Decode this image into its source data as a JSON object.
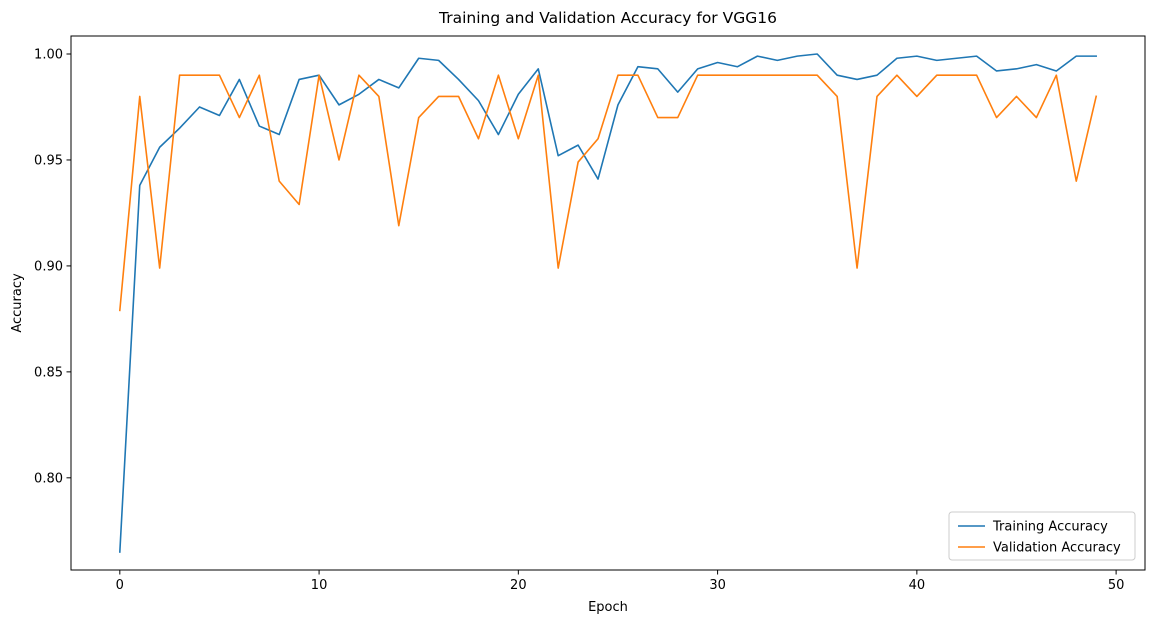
{
  "chart_data": {
    "type": "line",
    "title": "Training and Validation Accuracy for VGG16",
    "xlabel": "Epoch",
    "ylabel": "Accuracy",
    "xlim": [
      -2.45,
      51.45
    ],
    "ylim": [
      0.7565,
      1.0085
    ],
    "xticks": [
      0,
      10,
      20,
      30,
      40,
      50
    ],
    "yticks": [
      0.8,
      0.85,
      0.9,
      0.95,
      1.0
    ],
    "xtick_labels": [
      "0",
      "10",
      "20",
      "30",
      "40",
      "50"
    ],
    "ytick_labels": [
      "0.80",
      "0.85",
      "0.90",
      "0.95",
      "1.00"
    ],
    "grid": false,
    "legend_position": "lower-right",
    "x": [
      0,
      1,
      2,
      3,
      4,
      5,
      6,
      7,
      8,
      9,
      10,
      11,
      12,
      13,
      14,
      15,
      16,
      17,
      18,
      19,
      20,
      21,
      22,
      23,
      24,
      25,
      26,
      27,
      28,
      29,
      30,
      31,
      32,
      33,
      34,
      35,
      36,
      37,
      38,
      39,
      40,
      41,
      42,
      43,
      44,
      45,
      46,
      47,
      48,
      49
    ],
    "series": [
      {
        "name": "Training Accuracy",
        "color": "#1f77b4",
        "values": [
          0.765,
          0.938,
          0.956,
          0.965,
          0.975,
          0.971,
          0.988,
          0.966,
          0.962,
          0.988,
          0.99,
          0.976,
          0.981,
          0.988,
          0.984,
          0.998,
          0.997,
          0.988,
          0.978,
          0.962,
          0.981,
          0.993,
          0.952,
          0.957,
          0.941,
          0.976,
          0.994,
          0.993,
          0.982,
          0.993,
          0.996,
          0.994,
          0.999,
          0.997,
          0.999,
          1.0,
          0.99,
          0.988,
          0.99,
          0.998,
          0.999,
          0.997,
          0.998,
          0.999,
          0.992,
          0.993,
          0.995,
          0.992,
          0.999,
          0.999
        ]
      },
      {
        "name": "Validation Accuracy",
        "color": "#ff7f0e",
        "values": [
          0.879,
          0.98,
          0.899,
          0.99,
          0.99,
          0.99,
          0.97,
          0.99,
          0.94,
          0.929,
          0.99,
          0.95,
          0.99,
          0.98,
          0.919,
          0.97,
          0.98,
          0.98,
          0.96,
          0.99,
          0.96,
          0.99,
          0.899,
          0.949,
          0.96,
          0.99,
          0.99,
          0.97,
          0.97,
          0.99,
          0.99,
          0.99,
          0.99,
          0.99,
          0.99,
          0.99,
          0.98,
          0.899,
          0.98,
          0.99,
          0.98,
          0.99,
          0.99,
          0.99,
          0.97,
          0.98,
          0.97,
          0.99,
          0.94,
          0.98
        ]
      }
    ]
  }
}
